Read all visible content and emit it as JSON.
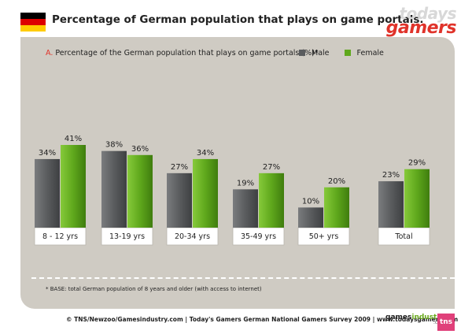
{
  "header": {
    "title": "Percentage of German population that plays on game portals.",
    "logo_line1": "todays",
    "logo_line2": "gamers"
  },
  "subtitle": {
    "prefix": "A.",
    "text": "Percentage of the German population that plays on game portals (%)*"
  },
  "legend": [
    {
      "label": "Male",
      "color": "#5a5c5e"
    },
    {
      "label": "Female",
      "color": "#5fa81c"
    }
  ],
  "chart_data": {
    "type": "bar",
    "categories": [
      "8 - 12 yrs",
      "13-19 yrs",
      "20-34 yrs",
      "35-49 yrs",
      "50+ yrs",
      "Total"
    ],
    "series": [
      {
        "name": "Male",
        "values": [
          34,
          38,
          27,
          19,
          10,
          23
        ],
        "labels": [
          "34%",
          "38%",
          "27%",
          "19%",
          "10%",
          "23%"
        ],
        "color": "#5a5c5e"
      },
      {
        "name": "Female",
        "values": [
          41,
          36,
          34,
          27,
          20,
          29
        ],
        "labels": [
          "41%",
          "36%",
          "34%",
          "27%",
          "20%",
          "29%"
        ],
        "color": "#5fa81c"
      }
    ],
    "ylim": [
      0,
      41
    ],
    "grid": false,
    "legend_position": "top-right"
  },
  "footnote": "* BASE: total German population of 8 years and older (with access to internet)",
  "footer": {
    "source": "© TNS/Newzoo/Gamesindustry.com | Today's Gamers German National Gamers Survey 2009 | www.todaysgamers.com",
    "gi_logo_a": "games",
    "gi_logo_b": "industry",
    "gi_logo_c": ".com",
    "tns_logo": "tns"
  },
  "colors": {
    "flag": [
      "#000000",
      "#dd0000",
      "#ffcc00"
    ],
    "accent": "#e0332a",
    "panel": "#cfcbc3"
  }
}
